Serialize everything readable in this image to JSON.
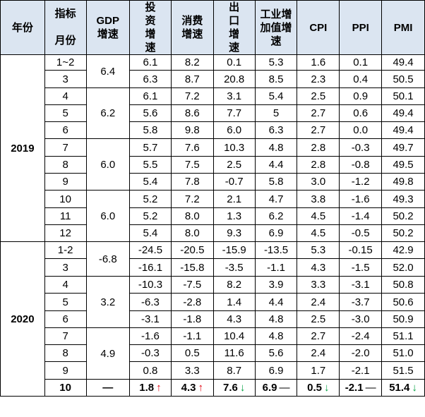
{
  "headers": {
    "year": "年份",
    "indicator": "指标",
    "month": "月份",
    "gdp": "GDP增速",
    "invest": "投资增速",
    "consume": "消费增速",
    "export": "出口增速",
    "industry": "工业增加值增速",
    "cpi": "CPI",
    "ppi": "PPI",
    "pmi": "PMI"
  },
  "years": [
    "2019",
    "2020"
  ],
  "gdp_2019": [
    "6.4",
    "6.2",
    "6.0",
    "6.0"
  ],
  "gdp_2020": [
    "-6.8",
    "3.2",
    "4.9",
    "—"
  ],
  "rows": [
    {
      "month": "1~2",
      "invest": "6.1",
      "consume": "8.2",
      "export": "0.1",
      "industry": "5.3",
      "cpi": "1.6",
      "ppi": "0.1",
      "pmi": "49.4"
    },
    {
      "month": "3",
      "invest": "6.3",
      "consume": "8.7",
      "export": "20.8",
      "industry": "8.5",
      "cpi": "2.3",
      "ppi": "0.4",
      "pmi": "50.5"
    },
    {
      "month": "4",
      "invest": "6.1",
      "consume": "7.2",
      "export": "3.1",
      "industry": "5.4",
      "cpi": "2.5",
      "ppi": "0.9",
      "pmi": "50.1"
    },
    {
      "month": "5",
      "invest": "5.6",
      "consume": "8.6",
      "export": "7.7",
      "industry": "5",
      "cpi": "2.7",
      "ppi": "0.6",
      "pmi": "49.4"
    },
    {
      "month": "6",
      "invest": "5.8",
      "consume": "9.8",
      "export": "6.0",
      "industry": "6.3",
      "cpi": "2.7",
      "ppi": "0.0",
      "pmi": "49.4"
    },
    {
      "month": "7",
      "invest": "5.7",
      "consume": "7.6",
      "export": "10.3",
      "industry": "4.8",
      "cpi": "2.8",
      "ppi": "-0.3",
      "pmi": "49.7"
    },
    {
      "month": "8",
      "invest": "5.5",
      "consume": "7.5",
      "export": "2.5",
      "industry": "4.4",
      "cpi": "2.8",
      "ppi": "-0.8",
      "pmi": "49.5"
    },
    {
      "month": "9",
      "invest": "5.4",
      "consume": "7.8",
      "export": "-0.7",
      "industry": "5.8",
      "cpi": "3.0",
      "ppi": "-1.2",
      "pmi": "49.8"
    },
    {
      "month": "10",
      "invest": "5.2",
      "consume": "7.2",
      "export": "2.1",
      "industry": "4.7",
      "cpi": "3.8",
      "ppi": "-1.6",
      "pmi": "49.3"
    },
    {
      "month": "11",
      "invest": "5.2",
      "consume": "8.0",
      "export": "1.3",
      "industry": "6.2",
      "cpi": "4.5",
      "ppi": "-1.4",
      "pmi": "50.2"
    },
    {
      "month": "12",
      "invest": "5.4",
      "consume": "8.0",
      "export": "9.3",
      "industry": "6.9",
      "cpi": "4.5",
      "ppi": "-0.5",
      "pmi": "50.2"
    },
    {
      "month": "1-2",
      "invest": "-24.5",
      "consume": "-20.5",
      "export": "-15.9",
      "industry": "-13.5",
      "cpi": "5.3",
      "ppi": "-0.15",
      "pmi": "42.9"
    },
    {
      "month": "3",
      "invest": "-16.1",
      "consume": "-15.8",
      "export": "-3.5",
      "industry": "-1.1",
      "cpi": "4.3",
      "ppi": "-1.5",
      "pmi": "52.0"
    },
    {
      "month": "4",
      "invest": "-10.3",
      "consume": "-7.5",
      "export": "8.2",
      "industry": "3.9",
      "cpi": "3.3",
      "ppi": "-3.1",
      "pmi": "50.8"
    },
    {
      "month": "5",
      "invest": "-6.3",
      "consume": "-2.8",
      "export": "1.4",
      "industry": "4.4",
      "cpi": "2.4",
      "ppi": "-3.7",
      "pmi": "50.6"
    },
    {
      "month": "6",
      "invest": "-3.1",
      "consume": "-1.8",
      "export": "4.3",
      "industry": "4.8",
      "cpi": "2.5",
      "ppi": "-3.0",
      "pmi": "50.9"
    },
    {
      "month": "7",
      "invest": "-1.6",
      "consume": "-1.1",
      "export": "10.4",
      "industry": "4.8",
      "cpi": "2.7",
      "ppi": "-2.4",
      "pmi": "51.1"
    },
    {
      "month": "8",
      "invest": "-0.3",
      "consume": "0.5",
      "export": "11.6",
      "industry": "5.6",
      "cpi": "2.4",
      "ppi": "-2.0",
      "pmi": "51.0"
    },
    {
      "month": "9",
      "invest": "0.8",
      "consume": "3.3",
      "export": "8.7",
      "industry": "6.9",
      "cpi": "1.7",
      "ppi": "-2.1",
      "pmi": "51.5"
    },
    {
      "month": "10",
      "invest": "1.8",
      "consume": "4.3",
      "export": "7.6",
      "industry": "6.9",
      "cpi": "0.5",
      "ppi": "-2.1",
      "pmi": "51.4"
    }
  ],
  "last_row_arrows": {
    "invest": "↑",
    "consume": "↑",
    "export": "↓",
    "industry": "—",
    "cpi": "↓",
    "ppi": "—",
    "pmi": "↓"
  },
  "colors": {
    "header_bg": "#dbe5f1",
    "up_arrow": "#e0000e",
    "down_arrow": "#00a040"
  }
}
